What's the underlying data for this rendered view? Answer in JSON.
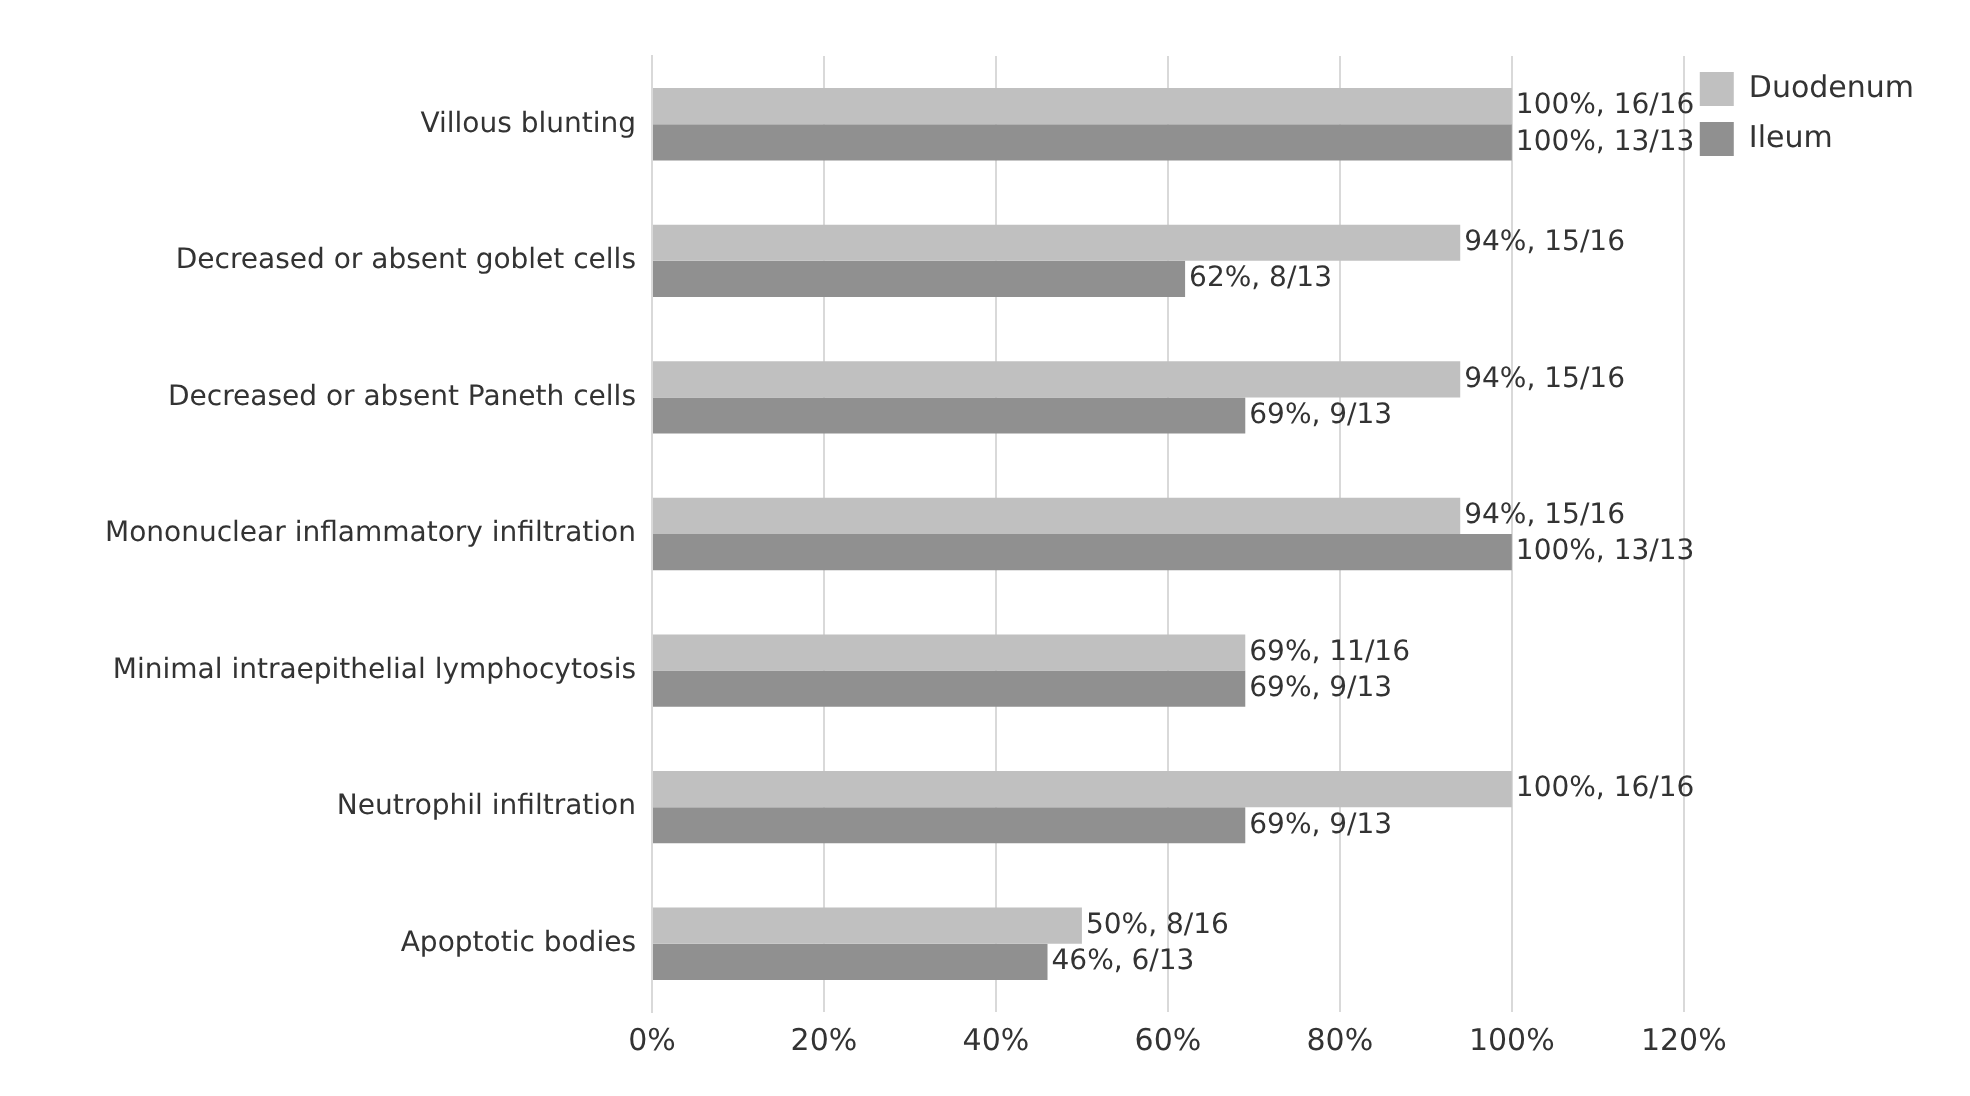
{
  "chart_data": {
    "type": "bar",
    "orientation": "horizontal",
    "categories": [
      "Villous blunting",
      "Decreased or absent goblet cells",
      "Decreased or absent Paneth cells",
      "Mononuclear inflammatory infiltration",
      "Minimal intraepithelial lymphocytosis",
      "Neutrophil infiltration",
      "Apoptotic bodies"
    ],
    "series": [
      {
        "name": "Duodenum",
        "color": "#c0c0c0",
        "values": [
          100,
          94,
          94,
          94,
          69,
          100,
          50
        ],
        "value_labels": [
          "100%, 16/16",
          "94%, 15/16",
          "94%, 15/16",
          "94%, 15/16",
          "69%, 11/16",
          "100%, 16/16",
          "50%, 8/16"
        ]
      },
      {
        "name": "Ileum",
        "color": "#909090",
        "values": [
          100,
          62,
          69,
          100,
          69,
          69,
          46
        ],
        "value_labels": [
          "100%, 13/13",
          "62%, 8/13",
          "69%, 9/13",
          "100%, 13/13",
          "69%, 9/13",
          "69%, 9/13",
          "46%, 6/13"
        ]
      }
    ],
    "xlim": [
      0,
      120
    ],
    "xticks": [
      {
        "value": 0,
        "label": "0%"
      },
      {
        "value": 20,
        "label": "20%"
      },
      {
        "value": 40,
        "label": "40%"
      },
      {
        "value": 60,
        "label": "60%"
      },
      {
        "value": 80,
        "label": "80%"
      },
      {
        "value": 100,
        "label": "100%"
      },
      {
        "value": 120,
        "label": "120%"
      }
    ],
    "grid": "x",
    "legend": "top right"
  }
}
